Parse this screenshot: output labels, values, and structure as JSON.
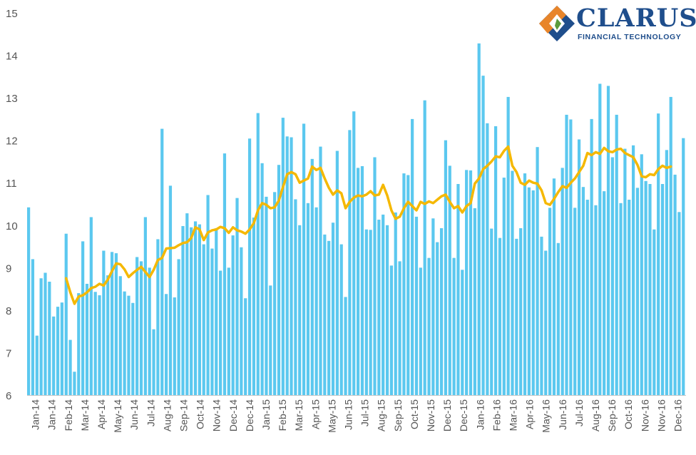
{
  "brand": {
    "name": "CLARUS",
    "tagline": "FINANCIAL TECHNOLOGY",
    "colors": {
      "navy": "#1f4e8c",
      "orange": "#e8852a",
      "green": "#5a9b3c"
    }
  },
  "chart_data": {
    "type": "bar",
    "title": "",
    "xlabel": "",
    "ylabel": "",
    "ylim": [
      6,
      15
    ],
    "yticks": [
      6,
      7,
      8,
      9,
      10,
      11,
      12,
      13,
      14,
      15
    ],
    "grid": false,
    "legend": "none",
    "colors": {
      "bars": "#5bc8ef",
      "line": "#f5b800"
    },
    "xtick_labels": [
      "Jan-14",
      "Jan-14",
      "Feb-14",
      "Mar-14",
      "Apr-14",
      "May-14",
      "Jun-14",
      "Jul-14",
      "Aug-14",
      "Sep-14",
      "Oct-14",
      "Nov-14",
      "Dec-14",
      "Dec-14",
      "Jan-15",
      "Feb-15",
      "Mar-15",
      "Apr-15",
      "May-15",
      "Jun-15",
      "Jul-15",
      "Aug-15",
      "Sep-15",
      "Oct-15",
      "Nov-15",
      "Dec-15",
      "Dec-15",
      "Jan-16",
      "Feb-16",
      "Mar-16",
      "Apr-16",
      "May-16",
      "Jun-16",
      "Jul-16",
      "Aug-16",
      "Sep-16",
      "Oct-16",
      "Nov-16",
      "Nov-16",
      "Dec-16"
    ],
    "bar_values": [
      10.42,
      9.2,
      7.4,
      8.75,
      8.88,
      8.67,
      7.85,
      8.08,
      8.18,
      9.8,
      7.3,
      6.55,
      8.4,
      9.62,
      8.62,
      10.19,
      8.43,
      8.35,
      9.4,
      8.82,
      9.37,
      9.34,
      8.8,
      8.44,
      8.34,
      8.17,
      9.25,
      9.15,
      10.19,
      9.0,
      7.55,
      9.67,
      12.27,
      8.38,
      10.93,
      8.3,
      9.2,
      9.98,
      10.28,
      9.95,
      10.09,
      10.02,
      9.55,
      10.71,
      9.45,
      9.93,
      8.93,
      11.69,
      9.0,
      9.76,
      10.64,
      9.48,
      8.28,
      12.04,
      10.18,
      12.64,
      11.46,
      10.67,
      8.58,
      10.78,
      11.42,
      12.53,
      12.09,
      12.07,
      10.61,
      10.0,
      12.39,
      10.52,
      11.56,
      10.42,
      11.85,
      9.78,
      9.63,
      10.06,
      11.75,
      9.55,
      8.31,
      12.24,
      12.68,
      11.35,
      11.39,
      9.9,
      9.89,
      11.6,
      10.13,
      10.25,
      10.0,
      9.05,
      10.3,
      9.15,
      11.22,
      11.18,
      12.5,
      10.2,
      9.0,
      12.94,
      9.23,
      10.16,
      9.6,
      9.93,
      12.0,
      11.4,
      9.23,
      10.97,
      8.95,
      11.3,
      11.29,
      10.4,
      14.28,
      13.52,
      12.4,
      9.92,
      12.33,
      9.7,
      11.12,
      13.02,
      11.28,
      9.68,
      9.93,
      11.22,
      10.89,
      10.82,
      11.84,
      9.73,
      9.4,
      10.41,
      11.1,
      9.58,
      11.35,
      12.6,
      12.49,
      10.41,
      12.02,
      10.9,
      10.6,
      12.5,
      10.47,
      13.33,
      10.8,
      13.28,
      11.6,
      12.6,
      10.52,
      11.8,
      10.6,
      11.88,
      10.88,
      11.67,
      11.04,
      10.97,
      9.9,
      12.63,
      10.97,
      11.77,
      13.02,
      11.19,
      10.31,
      12.05
    ],
    "series": [
      {
        "x_start_index": 9,
        "values": [
          8.75,
          8.42,
          8.15,
          8.32,
          8.35,
          8.42,
          8.52,
          8.55,
          8.62,
          8.58,
          8.72,
          8.92,
          9.1,
          9.08,
          8.96,
          8.78,
          8.87,
          8.95,
          9.02,
          8.9,
          8.78,
          8.95,
          9.18,
          9.23,
          9.45,
          9.46,
          9.47,
          9.53,
          9.58,
          9.6,
          9.7,
          9.95,
          9.9,
          9.65,
          9.83,
          9.88,
          9.9,
          9.96,
          9.93,
          9.82,
          9.95,
          9.88,
          9.85,
          9.8,
          9.9,
          10.05,
          10.35,
          10.52,
          10.48,
          10.4,
          10.42,
          10.58,
          10.9,
          11.2,
          11.25,
          11.2,
          11.0,
          11.05,
          11.1,
          11.38,
          11.3,
          11.35,
          11.1,
          10.88,
          10.72,
          10.82,
          10.75,
          10.4,
          10.55,
          10.65,
          10.7,
          10.68,
          10.72,
          10.8,
          10.7,
          10.72,
          10.95,
          10.7,
          10.35,
          10.15,
          10.2,
          10.4,
          10.55,
          10.45,
          10.35,
          10.55,
          10.5,
          10.56,
          10.52,
          10.6,
          10.68,
          10.72,
          10.55,
          10.4,
          10.45,
          10.3,
          10.45,
          10.52,
          10.98,
          11.1,
          11.32,
          11.4,
          11.5,
          11.62,
          11.6,
          11.75,
          11.85,
          11.4,
          11.25,
          11.0,
          10.95,
          11.05,
          11.0,
          10.98,
          10.82,
          10.52,
          10.48,
          10.62,
          10.78,
          10.92,
          10.88,
          11.0,
          11.1,
          11.25,
          11.4,
          11.7,
          11.65,
          11.72,
          11.68,
          11.82,
          11.74,
          11.72,
          11.78,
          11.8,
          11.7,
          11.65,
          11.6,
          11.42,
          11.15,
          11.13,
          11.2,
          11.18,
          11.32,
          11.4,
          11.35,
          11.38
        ]
      }
    ]
  }
}
